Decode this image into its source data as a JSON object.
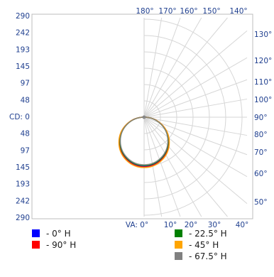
{
  "chart_data": {
    "type": "polar",
    "y_labels_top": [
      "290",
      "242",
      "193",
      "145",
      "97",
      "48"
    ],
    "y_center_label": "CD: 0",
    "y_labels_bottom": [
      "48",
      "97",
      "145",
      "193",
      "242",
      "290"
    ],
    "r_max": 290,
    "angle_labels_top": [
      "180°",
      "170°",
      "160°",
      "150°",
      "140°"
    ],
    "angle_labels_right": [
      "130°",
      "120°",
      "110°",
      "100°",
      "90°",
      "80°",
      "70°",
      "60°",
      "50°"
    ],
    "angle_labels_bottom": [
      "VA: 0°",
      "10°",
      "20°",
      "30°",
      "40°"
    ],
    "series": [
      {
        "name": "- 0° H",
        "color": "#0000ff",
        "shape": "circle",
        "diameter_cd": 145,
        "offset": 0
      },
      {
        "name": "- 90° H",
        "color": "#ff0000",
        "shape": "circle",
        "diameter_cd": 145,
        "offset": 0.5
      },
      {
        "name": "- 22.5° H",
        "color": "#008000",
        "shape": "circle",
        "diameter_cd": 145,
        "offset": -0.5
      },
      {
        "name": "- 45° H",
        "color": "#ffa500",
        "shape": "circle",
        "diameter_cd": 145,
        "offset": 1
      },
      {
        "name": "- 67.5° H",
        "color": "#808080",
        "shape": "circle",
        "diameter_cd": 145,
        "offset": -1
      }
    ],
    "legend_left": [
      0,
      1
    ],
    "legend_right": [
      2,
      3,
      4
    ],
    "grid": true
  }
}
